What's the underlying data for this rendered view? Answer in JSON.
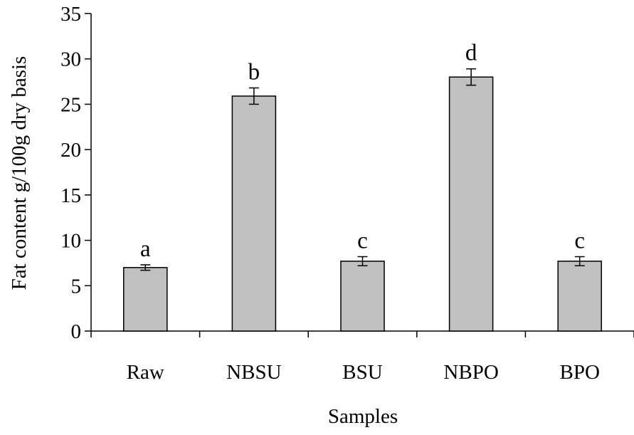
{
  "chart_data": {
    "type": "bar",
    "categories": [
      "Raw",
      "NBSU",
      "BSU",
      "NBPO",
      "BPO"
    ],
    "values": [
      7.0,
      25.9,
      7.7,
      28.0,
      7.7
    ],
    "errors": [
      0.3,
      0.9,
      0.5,
      0.9,
      0.5
    ],
    "significance_letters": [
      "a",
      "b",
      "c",
      "d",
      "c"
    ],
    "xlabel": "Samples",
    "ylabel": "Fat content g/100g dry basis",
    "ylim": [
      0,
      35
    ],
    "yticks": [
      0,
      5,
      10,
      15,
      20,
      25,
      30,
      35
    ],
    "grid": false,
    "legend": "none",
    "colors": {
      "bar_fill": "#c0c0c0",
      "bar_stroke": "#000000",
      "axis": "#000000"
    }
  }
}
